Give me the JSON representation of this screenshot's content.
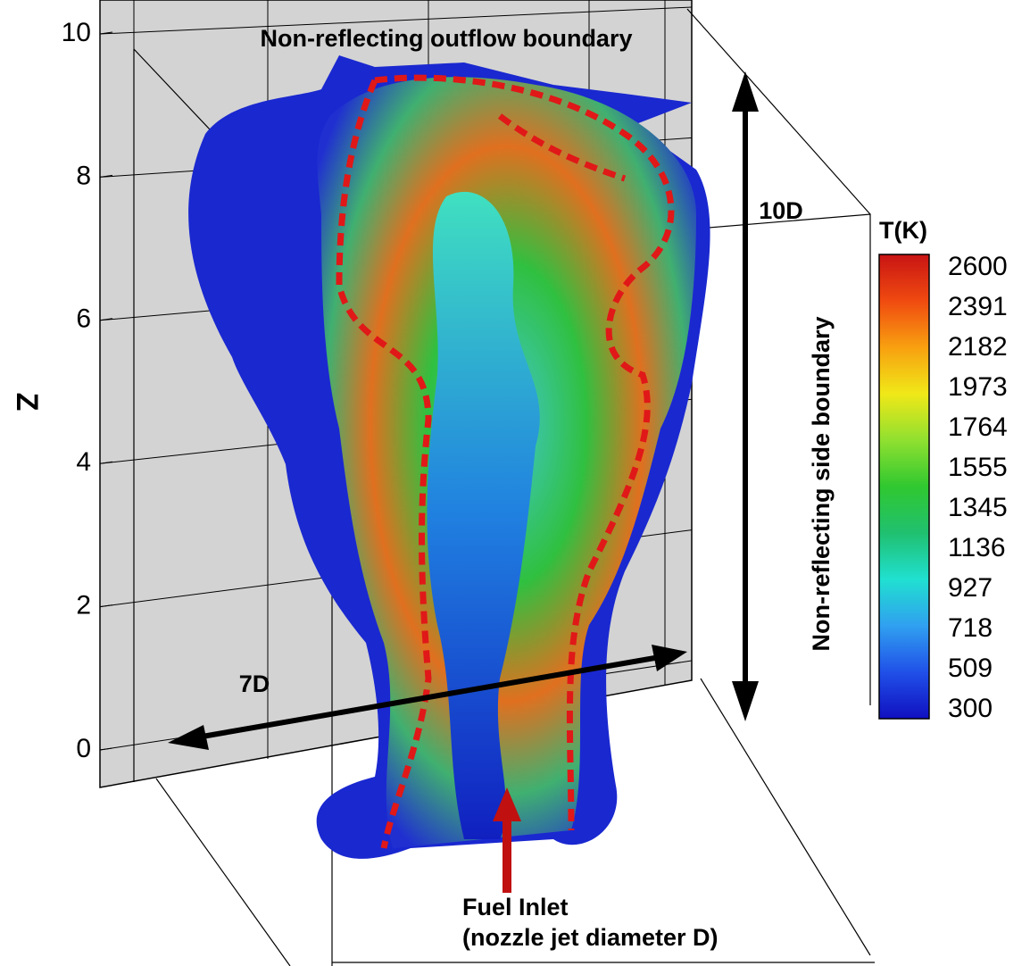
{
  "axis": {
    "label": "Z",
    "ticks": [
      10,
      8,
      6,
      4,
      2,
      0
    ]
  },
  "colorbar": {
    "title": "T(K)",
    "levels": [
      2600,
      2391,
      2182,
      1973,
      1764,
      1555,
      1345,
      1136,
      927,
      718,
      509,
      300
    ]
  },
  "annotations": {
    "top_boundary": "Non-reflecting outflow boundary",
    "side_boundary": "Non-reflecting side boundary",
    "height": "10D",
    "width": "7D",
    "inlet": [
      "Fuel Inlet",
      "(nozzle jet diameter D)"
    ]
  }
}
